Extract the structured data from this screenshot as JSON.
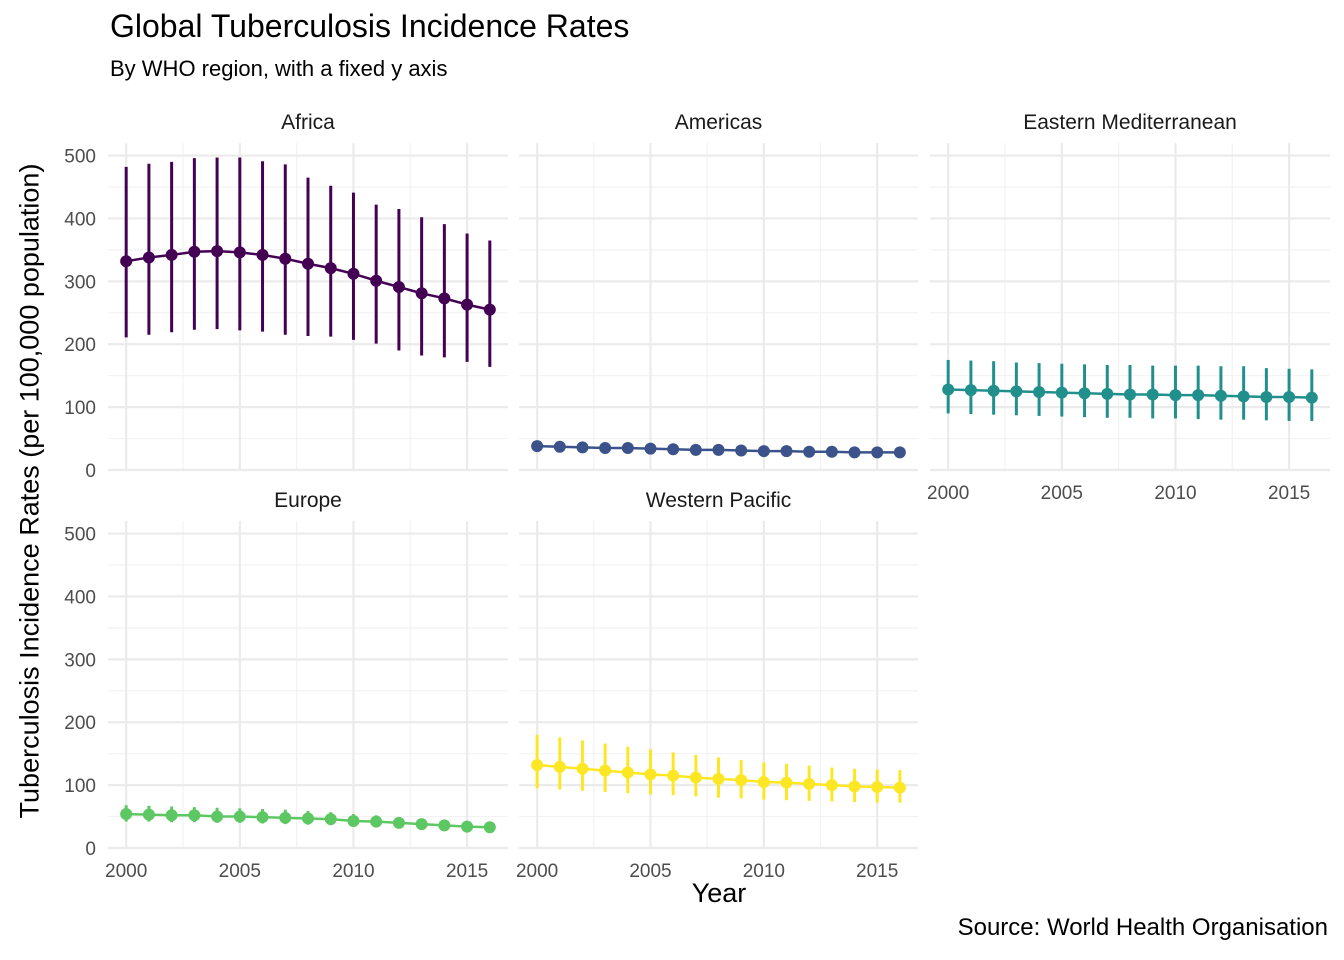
{
  "chart_data": {
    "type": "line",
    "title": "Global Tuberculosis Incidence Rates",
    "subtitle": "By WHO region, with a fixed y axis",
    "xlabel": "Year",
    "ylabel": "Tuberculosis Incidence Rates (per 100,000 population)",
    "caption": "Source: World Health Organisation",
    "ylim": [
      0,
      520
    ],
    "y_ticks": [
      0,
      100,
      200,
      300,
      400,
      500
    ],
    "xlim": [
      1999.2,
      2016.8
    ],
    "x_ticks": [
      2000,
      2005,
      2010,
      2015
    ],
    "grid": true,
    "legend": "none",
    "x": [
      2000,
      2001,
      2002,
      2003,
      2004,
      2005,
      2006,
      2007,
      2008,
      2009,
      2010,
      2011,
      2012,
      2013,
      2014,
      2015,
      2016
    ],
    "series": [
      {
        "name": "Africa",
        "color": "#440154",
        "values": [
          332,
          338,
          342,
          347,
          348,
          346,
          342,
          336,
          328,
          321,
          312,
          301,
          291,
          281,
          273,
          263,
          255
        ],
        "lower": [
          211,
          215,
          219,
          223,
          224,
          222,
          220,
          215,
          213,
          212,
          207,
          201,
          190,
          182,
          179,
          172,
          164
        ],
        "upper": [
          482,
          487,
          490,
          496,
          497,
          497,
          491,
          486,
          465,
          452,
          441,
          422,
          415,
          402,
          391,
          376,
          365
        ]
      },
      {
        "name": "Americas",
        "color": "#3b528b",
        "values": [
          38,
          37,
          36,
          35,
          35,
          34,
          33,
          32,
          32,
          31,
          30,
          30,
          29,
          29,
          28,
          28,
          28
        ],
        "lower": [
          35,
          34,
          33,
          32,
          32,
          31,
          30,
          30,
          29,
          28,
          28,
          27,
          27,
          26,
          26,
          26,
          25
        ],
        "upper": [
          41,
          40,
          39,
          38,
          38,
          37,
          36,
          35,
          34,
          34,
          33,
          33,
          32,
          31,
          31,
          30,
          30
        ]
      },
      {
        "name": "Eastern Mediterranean",
        "color": "#21908d",
        "values": [
          128,
          127,
          126,
          125,
          124,
          123,
          122,
          121,
          120,
          120,
          119,
          119,
          118,
          117,
          116,
          116,
          115
        ],
        "lower": [
          90,
          89,
          88,
          87,
          86,
          85,
          84,
          83,
          83,
          82,
          82,
          81,
          80,
          80,
          79,
          78,
          78
        ],
        "upper": [
          175,
          174,
          173,
          171,
          170,
          169,
          168,
          167,
          167,
          166,
          166,
          166,
          165,
          165,
          162,
          161,
          160
        ]
      },
      {
        "name": "Europe",
        "color": "#5dc863",
        "values": [
          54,
          53,
          52,
          52,
          50,
          50,
          49,
          48,
          47,
          46,
          43,
          42,
          40,
          38,
          36,
          34,
          33
        ],
        "lower": [
          42,
          42,
          41,
          41,
          40,
          40,
          39,
          38,
          37,
          37,
          35,
          35,
          33,
          32,
          31,
          30,
          29
        ],
        "upper": [
          68,
          67,
          66,
          65,
          64,
          63,
          62,
          61,
          59,
          57,
          54,
          52,
          49,
          46,
          43,
          40,
          38
        ]
      },
      {
        "name": "Western Pacific",
        "color": "#fde725",
        "values": [
          132,
          129,
          126,
          123,
          120,
          117,
          115,
          112,
          110,
          108,
          105,
          104,
          102,
          100,
          98,
          97,
          96
        ],
        "lower": [
          95,
          93,
          91,
          89,
          87,
          85,
          84,
          82,
          80,
          79,
          77,
          76,
          75,
          74,
          73,
          72,
          72
        ],
        "upper": [
          180,
          176,
          171,
          166,
          161,
          157,
          152,
          148,
          144,
          140,
          136,
          134,
          131,
          128,
          126,
          125,
          124
        ]
      }
    ]
  }
}
